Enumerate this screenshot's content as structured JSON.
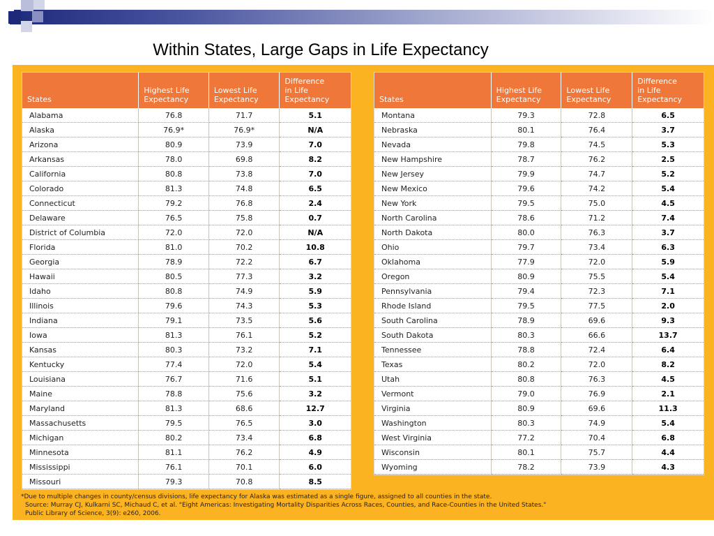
{
  "title": "Within States, Large Gaps in Life Expectancy",
  "headers": {
    "states": "States",
    "highest": [
      "Highest Life",
      "Expectancy"
    ],
    "lowest": [
      "Lowest Life",
      "Expectancy"
    ],
    "difference": [
      "Difference",
      "in Life",
      "Expectancy"
    ]
  },
  "left_rows": [
    {
      "state": "Alabama",
      "high": "76.8",
      "low": "71.7",
      "diff": "5.1"
    },
    {
      "state": "Alaska",
      "high": "76.9*",
      "low": "76.9*",
      "diff": "N/A"
    },
    {
      "state": "Arizona",
      "high": "80.9",
      "low": "73.9",
      "diff": "7.0"
    },
    {
      "state": "Arkansas",
      "high": "78.0",
      "low": "69.8",
      "diff": "8.2"
    },
    {
      "state": "California",
      "high": "80.8",
      "low": "73.8",
      "diff": "7.0"
    },
    {
      "state": "Colorado",
      "high": "81.3",
      "low": "74.8",
      "diff": "6.5"
    },
    {
      "state": "Connecticut",
      "high": "79.2",
      "low": "76.8",
      "diff": "2.4"
    },
    {
      "state": "Delaware",
      "high": "76.5",
      "low": "75.8",
      "diff": "0.7"
    },
    {
      "state": "District of Columbia",
      "high": "72.0",
      "low": "72.0",
      "diff": "N/A"
    },
    {
      "state": "Florida",
      "high": "81.0",
      "low": "70.2",
      "diff": "10.8"
    },
    {
      "state": "Georgia",
      "high": "78.9",
      "low": "72.2",
      "diff": "6.7"
    },
    {
      "state": "Hawaii",
      "high": "80.5",
      "low": "77.3",
      "diff": "3.2"
    },
    {
      "state": "Idaho",
      "high": "80.8",
      "low": "74.9",
      "diff": "5.9"
    },
    {
      "state": "Illinois",
      "high": "79.6",
      "low": "74.3",
      "diff": "5.3"
    },
    {
      "state": "Indiana",
      "high": "79.1",
      "low": "73.5",
      "diff": "5.6"
    },
    {
      "state": "Iowa",
      "high": "81.3",
      "low": "76.1",
      "diff": "5.2"
    },
    {
      "state": "Kansas",
      "high": "80.3",
      "low": "73.2",
      "diff": "7.1"
    },
    {
      "state": "Kentucky",
      "high": "77.4",
      "low": "72.0",
      "diff": "5.4"
    },
    {
      "state": "Louisiana",
      "high": "76.7",
      "low": "71.6",
      "diff": "5.1"
    },
    {
      "state": "Maine",
      "high": "78.8",
      "low": "75.6",
      "diff": "3.2"
    },
    {
      "state": "Maryland",
      "high": "81.3",
      "low": "68.6",
      "diff": "12.7"
    },
    {
      "state": "Massachusetts",
      "high": "79.5",
      "low": "76.5",
      "diff": "3.0"
    },
    {
      "state": "Michigan",
      "high": "80.2",
      "low": "73.4",
      "diff": "6.8"
    },
    {
      "state": "Minnesota",
      "high": "81.1",
      "low": "76.2",
      "diff": "4.9"
    },
    {
      "state": "Mississippi",
      "high": "76.1",
      "low": "70.1",
      "diff": "6.0"
    },
    {
      "state": "Missouri",
      "high": "79.3",
      "low": "70.8",
      "diff": "8.5"
    }
  ],
  "right_rows": [
    {
      "state": "Montana",
      "high": "79.3",
      "low": "72.8",
      "diff": "6.5"
    },
    {
      "state": "Nebraska",
      "high": "80.1",
      "low": "76.4",
      "diff": "3.7"
    },
    {
      "state": "Nevada",
      "high": "79.8",
      "low": "74.5",
      "diff": "5.3"
    },
    {
      "state": "New Hampshire",
      "high": "78.7",
      "low": "76.2",
      "diff": "2.5"
    },
    {
      "state": "New Jersey",
      "high": "79.9",
      "low": "74.7",
      "diff": "5.2"
    },
    {
      "state": "New Mexico",
      "high": "79.6",
      "low": "74.2",
      "diff": "5.4"
    },
    {
      "state": "New York",
      "high": "79.5",
      "low": "75.0",
      "diff": "4.5"
    },
    {
      "state": "North Carolina",
      "high": "78.6",
      "low": "71.2",
      "diff": "7.4"
    },
    {
      "state": "North Dakota",
      "high": "80.0",
      "low": "76.3",
      "diff": "3.7"
    },
    {
      "state": "Ohio",
      "high": "79.7",
      "low": "73.4",
      "diff": "6.3"
    },
    {
      "state": "Oklahoma",
      "high": "77.9",
      "low": "72.0",
      "diff": "5.9"
    },
    {
      "state": "Oregon",
      "high": "80.9",
      "low": "75.5",
      "diff": "5.4"
    },
    {
      "state": "Pennsylvania",
      "high": "79.4",
      "low": "72.3",
      "diff": "7.1"
    },
    {
      "state": "Rhode Island",
      "high": "79.5",
      "low": "77.5",
      "diff": "2.0"
    },
    {
      "state": "South Carolina",
      "high": "78.9",
      "low": "69.6",
      "diff": "9.3"
    },
    {
      "state": "South Dakota",
      "high": "80.3",
      "low": "66.6",
      "diff": "13.7"
    },
    {
      "state": "Tennessee",
      "high": "78.8",
      "low": "72.4",
      "diff": "6.4"
    },
    {
      "state": "Texas",
      "high": "80.2",
      "low": "72.0",
      "diff": "8.2"
    },
    {
      "state": "Utah",
      "high": "80.8",
      "low": "76.3",
      "diff": "4.5"
    },
    {
      "state": "Vermont",
      "high": "79.0",
      "low": "76.9",
      "diff": "2.1"
    },
    {
      "state": "Virginia",
      "high": "80.9",
      "low": "69.6",
      "diff": "11.3"
    },
    {
      "state": "Washington",
      "high": "80.3",
      "low": "74.9",
      "diff": "5.4"
    },
    {
      "state": "West Virginia",
      "high": "77.2",
      "low": "70.4",
      "diff": "6.8"
    },
    {
      "state": "Wisconsin",
      "high": "80.1",
      "low": "75.7",
      "diff": "4.4"
    },
    {
      "state": "Wyoming",
      "high": "78.2",
      "low": "73.9",
      "diff": "4.3"
    }
  ],
  "footnote": {
    "asterisk": "*Due to multiple changes in county/census divisions, life expectancy for Alaska was estimated as a single figure, assigned to all counties in the state.",
    "source": "Source:  Murray CJ, Kulkarni SC, Michaud C, et al. \"Eight Americas: Investigating Mortality Disparities Across Races, Counties, and Race-Counties in the United States.\"",
    "journal": "Public Library of Science, 3(9): e260, 2006."
  },
  "colors": {
    "header_orange": "#f0773a",
    "panel_gold": "#fbb321",
    "deco_navy": "#1d2a7a"
  }
}
